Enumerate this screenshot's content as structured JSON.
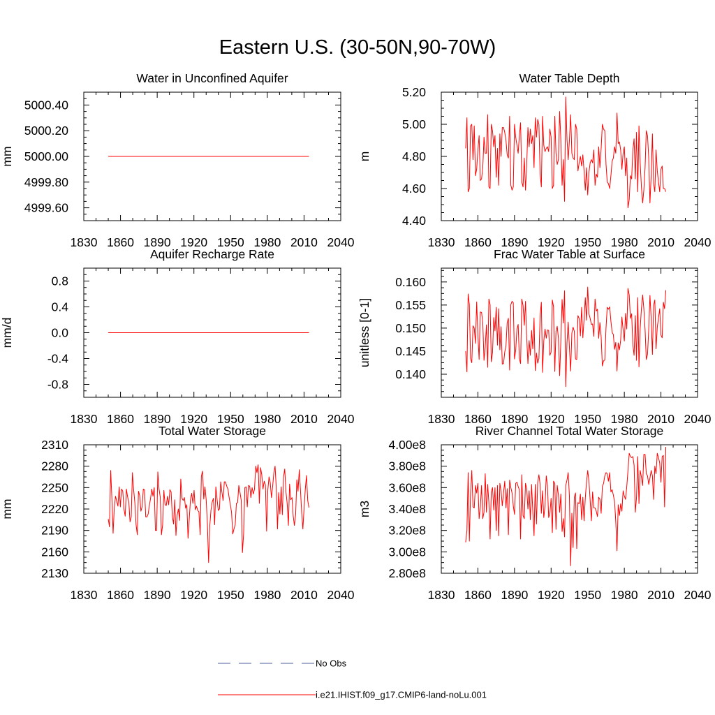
{
  "suptitle": "Eastern U.S. (30-50N,90-70W)",
  "legend": [
    {
      "label": "No Obs",
      "color": "#4b5d9a",
      "style": "dashed"
    },
    {
      "label": "i.e21.IHIST.f09_g17.CMIP6-land-noLu.001",
      "color": "#ff0000",
      "style": "solid"
    }
  ],
  "chart_data": [
    {
      "type": "line",
      "title": "Water in Unconfined Aquifer",
      "ylabel": "mm",
      "xlim": [
        1830,
        2040
      ],
      "ylim": [
        4999.5,
        5000.5
      ],
      "xticks": [
        1830,
        1860,
        1890,
        1920,
        1950,
        1980,
        2010,
        2040
      ],
      "yticks": [
        4999.6,
        4999.8,
        5000.0,
        5000.2,
        5000.4
      ],
      "ytick_labels": [
        "4999.60",
        "4999.80",
        "5000.00",
        "5000.20",
        "5000.40"
      ],
      "series": [
        {
          "x_start": 1850,
          "x_end": 2014,
          "values": [
            5000.0,
            5000.0
          ]
        }
      ]
    },
    {
      "type": "line",
      "title": "Water Table Depth",
      "ylabel": "m",
      "xlim": [
        1830,
        2040
      ],
      "ylim": [
        4.4,
        5.2
      ],
      "xticks": [
        1830,
        1860,
        1890,
        1920,
        1950,
        1980,
        2010,
        2040
      ],
      "yticks": [
        4.4,
        4.6,
        4.8,
        5.0,
        5.2
      ],
      "ytick_labels": [
        "4.40",
        "4.60",
        "4.80",
        "5.00",
        "5.20"
      ],
      "series": [
        {
          "x_start": 1850,
          "x_end": 2014,
          "values": [
            4.85,
            5.04,
            4.58,
            4.6,
            4.99,
            5.0,
            4.78,
            4.99,
            4.68,
            4.72,
            4.84,
            4.93,
            4.65,
            4.66,
            4.73,
            4.92,
            4.82,
            4.82,
            5.06,
            4.61,
            4.6,
            5.0,
            4.96,
            4.86,
            4.93,
            4.67,
            4.85,
            4.62,
            4.94,
            4.8,
            4.98,
            4.98,
            4.95,
            4.9,
            4.81,
            4.79,
            5.05,
            4.62,
            4.59,
            4.61,
            5.0,
            4.92,
            4.87,
            4.82,
            4.93,
            5.01,
            4.64,
            4.61,
            4.79,
            4.59,
            4.75,
            4.98,
            4.86,
            4.97,
            4.88,
            4.93,
            4.73,
            5.04,
            4.92,
            5.03,
            5.0,
            4.69,
            4.61,
            5.05,
            4.87,
            4.83,
            4.85,
            4.86,
            4.83,
            4.97,
            4.92,
            4.6,
            4.62,
            5.05,
            4.82,
            4.75,
            4.78,
            5.08,
            4.9,
            4.62,
            4.78,
            4.52,
            5.17,
            4.91,
            4.78,
            4.9,
            5.06,
            4.82,
            4.79,
            4.78,
            5.0,
            4.97,
            4.71,
            4.76,
            4.8,
            4.74,
            4.81,
            4.71,
            4.59,
            4.73,
            4.56,
            4.7,
            4.76,
            4.78,
            4.76,
            4.84,
            4.62,
            4.69,
            4.67,
            4.86,
            4.73,
            4.85,
            5.0,
            4.97,
            4.96,
            4.75,
            4.64,
            4.63,
            4.6,
            4.68,
            4.77,
            4.79,
            4.86,
            4.82,
            5.07,
            4.88,
            4.89,
            4.84,
            4.72,
            4.82,
            4.86,
            4.68,
            4.79,
            4.48,
            4.53,
            4.68,
            4.66,
            4.84,
            4.91,
            4.66,
            4.95,
            4.58,
            4.99,
            4.76,
            4.61,
            4.51,
            4.59,
            4.73,
            4.96,
            4.93,
            4.79,
            4.51,
            4.68,
            4.94,
            4.63,
            4.58,
            4.84,
            4.71,
            4.64,
            4.58,
            4.72,
            4.74,
            4.6,
            4.6,
            4.58
          ]
        }
      ]
    },
    {
      "type": "line",
      "title": "Aquifer Recharge Rate",
      "ylabel": "mm/d",
      "xlim": [
        1830,
        2040
      ],
      "ylim": [
        -1.0,
        1.0
      ],
      "xticks": [
        1830,
        1860,
        1890,
        1920,
        1950,
        1980,
        2010,
        2040
      ],
      "yticks": [
        -0.8,
        -0.4,
        0.0,
        0.4,
        0.8
      ],
      "ytick_labels": [
        "-0.8",
        "-0.4",
        "0.0",
        "0.4",
        "0.8"
      ],
      "series": [
        {
          "x_start": 1850,
          "x_end": 2014,
          "values": [
            0.0,
            0.0
          ]
        }
      ]
    },
    {
      "type": "line",
      "title": "Frac Water Table at Surface",
      "ylabel": "unitless [0-1]",
      "xlim": [
        1830,
        2040
      ],
      "ylim": [
        0.135,
        0.163
      ],
      "xticks": [
        1830,
        1860,
        1890,
        1920,
        1950,
        1980,
        2010,
        2040
      ],
      "yticks": [
        0.14,
        0.145,
        0.15,
        0.155,
        0.16
      ],
      "ytick_labels": [
        "0.140",
        "0.145",
        "0.150",
        "0.155",
        "0.160"
      ],
      "series": [
        {
          "x_start": 1850,
          "x_end": 2014,
          "values": [
            0.145,
            0.1405,
            0.1574,
            0.1551,
            0.1434,
            0.1425,
            0.1505,
            0.15,
            0.1467,
            0.1557,
            0.1484,
            0.1432,
            0.1535,
            0.1534,
            0.1512,
            0.143,
            0.1459,
            0.1507,
            0.1415,
            0.1563,
            0.1551,
            0.1427,
            0.1447,
            0.1523,
            0.1494,
            0.1545,
            0.1463,
            0.1542,
            0.1453,
            0.1503,
            0.1422,
            0.1423,
            0.1448,
            0.1461,
            0.1512,
            0.1521,
            0.1409,
            0.1551,
            0.1558,
            0.1555,
            0.1433,
            0.1452,
            0.1498,
            0.1508,
            0.1434,
            0.1423,
            0.1563,
            0.1549,
            0.1506,
            0.1558,
            0.1479,
            0.1423,
            0.1473,
            0.1441,
            0.1495,
            0.1455,
            0.1522,
            0.1408,
            0.1446,
            0.1424,
            0.1434,
            0.1527,
            0.1556,
            0.1404,
            0.1472,
            0.1498,
            0.1478,
            0.1496,
            0.1495,
            0.1441,
            0.1448,
            0.1561,
            0.1546,
            0.1406,
            0.1493,
            0.1504,
            0.1478,
            0.1397,
            0.1473,
            0.1562,
            0.1511,
            0.1581,
            0.1373,
            0.1468,
            0.1513,
            0.1458,
            0.1407,
            0.1489,
            0.1502,
            0.1493,
            0.1433,
            0.1432,
            0.1527,
            0.1521,
            0.1483,
            0.1545,
            0.1479,
            0.1519,
            0.1566,
            0.1517,
            0.1589,
            0.1531,
            0.1521,
            0.1508,
            0.1509,
            0.1482,
            0.1563,
            0.1537,
            0.1541,
            0.1478,
            0.1512,
            0.1481,
            0.1418,
            0.1429,
            0.1431,
            0.1501,
            0.1545,
            0.1541,
            0.1546,
            0.1515,
            0.1491,
            0.1486,
            0.1454,
            0.1469,
            0.1407,
            0.1468,
            0.1453,
            0.1474,
            0.1524,
            0.1496,
            0.1472,
            0.1532,
            0.1498,
            0.1586,
            0.1572,
            0.1521,
            0.1531,
            0.1463,
            0.1441,
            0.1527,
            0.143,
            0.1566,
            0.1416,
            0.1499,
            0.1542,
            0.1572,
            0.1542,
            0.1497,
            0.1432,
            0.1443,
            0.1497,
            0.1571,
            0.1521,
            0.1443,
            0.1549,
            0.1561,
            0.1455,
            0.1502,
            0.1522,
            0.1542,
            0.1485,
            0.1479,
            0.1556,
            0.1542,
            0.1582
          ]
        }
      ]
    },
    {
      "type": "line",
      "title": "Total Water Storage",
      "ylabel": "mm",
      "xlim": [
        1830,
        2040
      ],
      "ylim": [
        2130,
        2310
      ],
      "xticks": [
        1830,
        1860,
        1890,
        1920,
        1950,
        1980,
        2010,
        2040
      ],
      "yticks": [
        2130,
        2160,
        2190,
        2220,
        2250,
        2280,
        2310
      ],
      "ytick_labels": [
        "2130",
        "2160",
        "2190",
        "2220",
        "2250",
        "2280",
        "2310"
      ],
      "series": [
        {
          "x_start": 1850,
          "x_end": 2014,
          "values": [
            2206,
            2195,
            2274,
            2235,
            2186,
            2222,
            2238,
            2231,
            2224,
            2251,
            2223,
            2248,
            2245,
            2220,
            2210,
            2248,
            2237,
            2230,
            2202,
            2209,
            2271,
            2247,
            2229,
            2198,
            2184,
            2245,
            2239,
            2217,
            2223,
            2248,
            2247,
            2209,
            2209,
            2213,
            2225,
            2235,
            2248,
            2238,
            2250,
            2190,
            2190,
            2272,
            2248,
            2237,
            2184,
            2198,
            2246,
            2226,
            2225,
            2238,
            2226,
            2247,
            2244,
            2210,
            2199,
            2233,
            2183,
            2211,
            2220,
            2204,
            2262,
            2235,
            2232,
            2236,
            2221,
            2226,
            2179,
            2206,
            2233,
            2242,
            2228,
            2246,
            2219,
            2224,
            2218,
            2216,
            2184,
            2266,
            2273,
            2234,
            2251,
            2233,
            2200,
            2145,
            2197,
            2219,
            2230,
            2235,
            2198,
            2251,
            2234,
            2218,
            2220,
            2258,
            2244,
            2232,
            2258,
            2258,
            2252,
            2248,
            2236,
            2226,
            2215,
            2185,
            2192,
            2198,
            2228,
            2229,
            2253,
            2243,
            2232,
            2159,
            2186,
            2250,
            2251,
            2223,
            2253,
            2252,
            2236,
            2250,
            2241,
            2248,
            2280,
            2271,
            2282,
            2228,
            2278,
            2268,
            2248,
            2259,
            2254,
            2189,
            2247,
            2265,
            2257,
            2236,
            2252,
            2271,
            2280,
            2249,
            2192,
            2243,
            2213,
            2251,
            2212,
            2265,
            2276,
            2244,
            2228,
            2197,
            2255,
            2233,
            2236,
            2210,
            2197,
            2212,
            2261,
            2245,
            2275,
            2247,
            2215,
            2192,
            2221,
            2248,
            2267,
            2232,
            2222
          ]
        }
      ]
    },
    {
      "type": "line",
      "title": "River Channel Total Water Storage",
      "ylabel": "m3",
      "xlim": [
        1830,
        2040
      ],
      "ylim": [
        280000000,
        400000000
      ],
      "xticks": [
        1830,
        1860,
        1890,
        1920,
        1950,
        1980,
        2010,
        2040
      ],
      "yticks": [
        280000000,
        300000000,
        320000000,
        340000000,
        360000000,
        380000000,
        400000000
      ],
      "ytick_labels": [
        "2.80e8",
        "3.00e8",
        "3.20e8",
        "3.40e8",
        "3.60e8",
        "3.80e8",
        "4.00e8"
      ],
      "series": [
        {
          "x_start": 1850,
          "x_end": 2014,
          "values": [
            309000000,
            320000000,
            374000000,
            310000000,
            355000000,
            376000000,
            342000000,
            341000000,
            362000000,
            355000000,
            364000000,
            331000000,
            342000000,
            362000000,
            331000000,
            337000000,
            373000000,
            337000000,
            363000000,
            346000000,
            312000000,
            356000000,
            360000000,
            339000000,
            360000000,
            320000000,
            362000000,
            315000000,
            364000000,
            357000000,
            343000000,
            355000000,
            366000000,
            341000000,
            359000000,
            316000000,
            367000000,
            360000000,
            355000000,
            343000000,
            335000000,
            364000000,
            365000000,
            361000000,
            358000000,
            312000000,
            372000000,
            334000000,
            331000000,
            364000000,
            359000000,
            340000000,
            357000000,
            330000000,
            363000000,
            338000000,
            315000000,
            363000000,
            326000000,
            365000000,
            372000000,
            363000000,
            336000000,
            357000000,
            332000000,
            343000000,
            371000000,
            362000000,
            332000000,
            336000000,
            350000000,
            318000000,
            366000000,
            364000000,
            321000000,
            362000000,
            353000000,
            337000000,
            354000000,
            319000000,
            331000000,
            314000000,
            362000000,
            367000000,
            374000000,
            352000000,
            287000000,
            336000000,
            304000000,
            351000000,
            355000000,
            303000000,
            346000000,
            345000000,
            354000000,
            330000000,
            351000000,
            329000000,
            350000000,
            365000000,
            376000000,
            366000000,
            348000000,
            329000000,
            356000000,
            341000000,
            341000000,
            338000000,
            333000000,
            351000000,
            349000000,
            336000000,
            361000000,
            364000000,
            371000000,
            374000000,
            373000000,
            366000000,
            374000000,
            356000000,
            358000000,
            353000000,
            347000000,
            328000000,
            301000000,
            344000000,
            334000000,
            345000000,
            338000000,
            357000000,
            352000000,
            349000000,
            361000000,
            376000000,
            392000000,
            389000000,
            388000000,
            389000000,
            381000000,
            337000000,
            351000000,
            389000000,
            345000000,
            376000000,
            370000000,
            362000000,
            391000000,
            391000000,
            373000000,
            371000000,
            363000000,
            369000000,
            376000000,
            371000000,
            349000000,
            380000000,
            373000000,
            392000000,
            388000000,
            383000000,
            365000000,
            389000000,
            390000000,
            342000000,
            398000000
          ]
        }
      ]
    }
  ]
}
